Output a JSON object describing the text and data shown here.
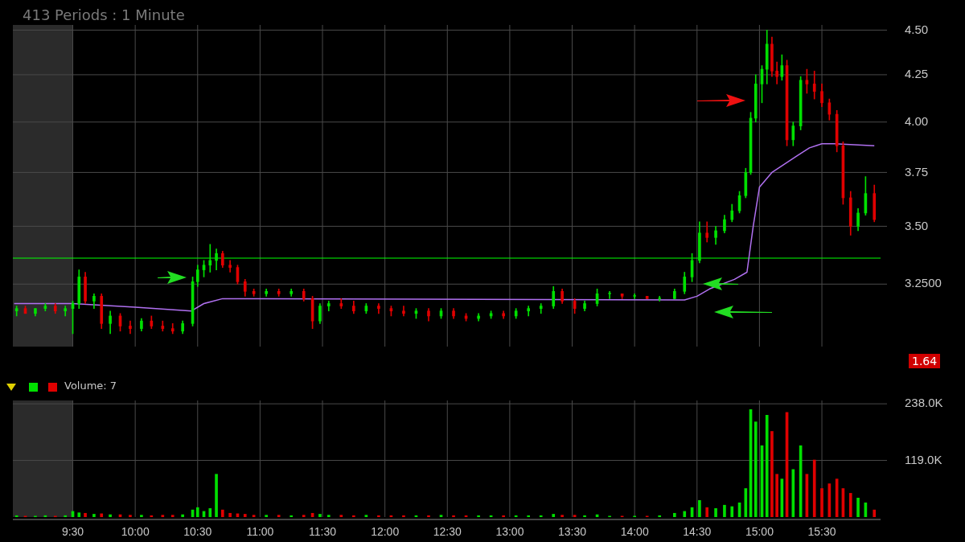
{
  "chart_data": [
    {
      "type": "candlestick",
      "title": "413  Periods : 1 Minute",
      "log": true,
      "grid": true,
      "tick_labels": "y",
      "annotations": [
        "1.64"
      ],
      "xlim": [
        9.02,
        15.97
      ],
      "ylim": [
        3.0,
        4.53
      ],
      "xticks": [
        {
          "value": 9.5,
          "label": null
        },
        {
          "value": 10,
          "label": null
        },
        {
          "value": 10.5,
          "label": null
        },
        {
          "value": 11,
          "label": null
        },
        {
          "value": 11.5,
          "label": null
        },
        {
          "value": 12,
          "label": null
        },
        {
          "value": 12.5,
          "label": null
        },
        {
          "value": 13,
          "label": null
        },
        {
          "value": 13.5,
          "label": null
        },
        {
          "value": 14,
          "label": null
        },
        {
          "value": 14.5,
          "label": null
        },
        {
          "value": 15,
          "label": null
        },
        {
          "value": 15.5,
          "label": null
        }
      ],
      "yticks": [
        {
          "value": 3.25,
          "label": "3.2500"
        },
        {
          "value": 3.5,
          "label": "3.50"
        },
        {
          "value": 3.75,
          "label": "3.75"
        },
        {
          "value": 4,
          "label": "4.00"
        },
        {
          "value": 4.25,
          "label": "4.25"
        },
        {
          "value": 4.5,
          "label": "4.50"
        }
      ],
      "ref_lines": [
        {
          "axis": "y",
          "value": 3.36,
          "color": "#00ff00"
        }
      ],
      "bands": [
        {
          "axis": "x",
          "from": 9.02,
          "to": 9.5,
          "color": "#2b2b2b"
        }
      ],
      "series": [
        {
          "type": "candlestick",
          "x": [
            9.05,
            9.12,
            9.2,
            9.28,
            9.36,
            9.44,
            9.5,
            9.55,
            9.6,
            9.67,
            9.73,
            9.8,
            9.88,
            9.96,
            10.05,
            10.13,
            10.22,
            10.3,
            10.38,
            10.46,
            10.5,
            10.55,
            10.6,
            10.65,
            10.7,
            10.76,
            10.82,
            10.88,
            10.95,
            11.05,
            11.15,
            11.25,
            11.35,
            11.42,
            11.48,
            11.55,
            11.65,
            11.75,
            11.85,
            11.95,
            12.05,
            12.15,
            12.25,
            12.35,
            12.45,
            12.55,
            12.65,
            12.75,
            12.85,
            12.95,
            13.05,
            13.15,
            13.25,
            13.35,
            13.42,
            13.52,
            13.6,
            13.7,
            13.8,
            13.9,
            14.0,
            14.1,
            14.2,
            14.32,
            14.4,
            14.46,
            14.52,
            14.58,
            14.65,
            14.72,
            14.78,
            14.84,
            14.89,
            14.93,
            14.97,
            15.02,
            15.06,
            15.1,
            15.14,
            15.18,
            15.22,
            15.27,
            15.33,
            15.38,
            15.44,
            15.5,
            15.56,
            15.62,
            15.67,
            15.73,
            15.79,
            15.85,
            15.92
          ],
          "ohlc": [
            [
              3.14,
              3.16,
              3.12,
              3.15
            ],
            [
              3.15,
              3.16,
              3.13,
              3.13
            ],
            [
              3.13,
              3.15,
              3.12,
              3.15
            ],
            [
              3.15,
              3.17,
              3.14,
              3.16
            ],
            [
              3.16,
              3.17,
              3.13,
              3.14
            ],
            [
              3.14,
              3.16,
              3.12,
              3.15
            ],
            [
              3.15,
              3.18,
              3.05,
              3.17
            ],
            [
              3.17,
              3.31,
              3.15,
              3.28
            ],
            [
              3.28,
              3.3,
              3.17,
              3.18
            ],
            [
              3.18,
              3.21,
              3.15,
              3.2
            ],
            [
              3.2,
              3.21,
              3.07,
              3.09
            ],
            [
              3.09,
              3.14,
              3.05,
              3.12
            ],
            [
              3.12,
              3.13,
              3.06,
              3.08
            ],
            [
              3.08,
              3.1,
              3.05,
              3.07
            ],
            [
              3.07,
              3.11,
              3.06,
              3.1
            ],
            [
              3.1,
              3.12,
              3.07,
              3.08
            ],
            [
              3.08,
              3.1,
              3.06,
              3.07
            ],
            [
              3.07,
              3.09,
              3.05,
              3.06
            ],
            [
              3.06,
              3.1,
              3.05,
              3.09
            ],
            [
              3.09,
              3.28,
              3.08,
              3.26
            ],
            [
              3.26,
              3.33,
              3.24,
              3.31
            ],
            [
              3.31,
              3.35,
              3.28,
              3.33
            ],
            [
              3.33,
              3.42,
              3.3,
              3.35
            ],
            [
              3.35,
              3.4,
              3.31,
              3.38
            ],
            [
              3.38,
              3.39,
              3.32,
              3.33
            ],
            [
              3.33,
              3.35,
              3.3,
              3.32
            ],
            [
              3.32,
              3.33,
              3.25,
              3.26
            ],
            [
              3.26,
              3.27,
              3.2,
              3.22
            ],
            [
              3.22,
              3.23,
              3.2,
              3.21
            ],
            [
              3.21,
              3.23,
              3.2,
              3.22
            ],
            [
              3.22,
              3.23,
              3.2,
              3.21
            ],
            [
              3.21,
              3.23,
              3.2,
              3.22
            ],
            [
              3.22,
              3.23,
              3.18,
              3.19
            ],
            [
              3.19,
              3.2,
              3.07,
              3.1
            ],
            [
              3.1,
              3.17,
              3.09,
              3.16
            ],
            [
              3.16,
              3.18,
              3.14,
              3.17
            ],
            [
              3.17,
              3.19,
              3.15,
              3.16
            ],
            [
              3.16,
              3.18,
              3.13,
              3.14
            ],
            [
              3.14,
              3.17,
              3.13,
              3.16
            ],
            [
              3.16,
              3.17,
              3.13,
              3.15
            ],
            [
              3.15,
              3.16,
              3.12,
              3.14
            ],
            [
              3.14,
              3.16,
              3.12,
              3.13
            ],
            [
              3.13,
              3.15,
              3.11,
              3.14
            ],
            [
              3.14,
              3.15,
              3.1,
              3.12
            ],
            [
              3.12,
              3.15,
              3.11,
              3.14
            ],
            [
              3.14,
              3.15,
              3.11,
              3.12
            ],
            [
              3.12,
              3.13,
              3.1,
              3.11
            ],
            [
              3.11,
              3.13,
              3.1,
              3.12
            ],
            [
              3.12,
              3.14,
              3.11,
              3.13
            ],
            [
              3.13,
              3.14,
              3.11,
              3.12
            ],
            [
              3.12,
              3.15,
              3.11,
              3.14
            ],
            [
              3.14,
              3.16,
              3.12,
              3.15
            ],
            [
              3.15,
              3.17,
              3.13,
              3.16
            ],
            [
              3.16,
              3.24,
              3.15,
              3.22
            ],
            [
              3.22,
              3.23,
              3.17,
              3.18
            ],
            [
              3.18,
              3.19,
              3.13,
              3.15
            ],
            [
              3.15,
              3.18,
              3.14,
              3.17
            ],
            [
              3.17,
              3.23,
              3.16,
              3.21
            ],
            [
              3.21,
              3.22,
              3.19,
              3.21
            ],
            [
              3.21,
              3.21,
              3.19,
              3.2
            ],
            [
              3.2,
              3.21,
              3.19,
              3.2
            ],
            [
              3.2,
              3.2,
              3.19,
              3.19
            ],
            [
              3.19,
              3.2,
              3.18,
              3.19
            ],
            [
              3.19,
              3.23,
              3.19,
              3.22
            ],
            [
              3.22,
              3.3,
              3.21,
              3.28
            ],
            [
              3.28,
              3.38,
              3.26,
              3.35
            ],
            [
              3.35,
              3.52,
              3.34,
              3.47
            ],
            [
              3.47,
              3.52,
              3.43,
              3.45
            ],
            [
              3.45,
              3.5,
              3.42,
              3.48
            ],
            [
              3.48,
              3.55,
              3.47,
              3.53
            ],
            [
              3.53,
              3.6,
              3.52,
              3.57
            ],
            [
              3.57,
              3.66,
              3.56,
              3.64
            ],
            [
              3.64,
              3.77,
              3.63,
              3.75
            ],
            [
              3.75,
              4.05,
              3.74,
              4.02
            ],
            [
              4.02,
              4.25,
              4.0,
              4.2
            ],
            [
              4.2,
              4.3,
              4.1,
              4.28
            ],
            [
              4.28,
              4.5,
              4.2,
              4.42
            ],
            [
              4.42,
              4.46,
              4.24,
              4.27
            ],
            [
              4.27,
              4.32,
              4.2,
              4.24
            ],
            [
              4.24,
              4.36,
              4.22,
              4.3
            ],
            [
              4.3,
              4.33,
              3.88,
              3.91
            ],
            [
              3.91,
              4.0,
              3.88,
              3.98
            ],
            [
              3.98,
              4.24,
              3.96,
              4.22
            ],
            [
              4.22,
              4.28,
              4.15,
              4.2
            ],
            [
              4.2,
              4.27,
              4.12,
              4.16
            ],
            [
              4.16,
              4.2,
              4.08,
              4.1
            ],
            [
              4.1,
              4.12,
              4.01,
              4.04
            ],
            [
              4.04,
              4.06,
              3.85,
              3.88
            ],
            [
              3.88,
              3.9,
              3.6,
              3.63
            ],
            [
              3.63,
              3.66,
              3.46,
              3.5
            ],
            [
              3.5,
              3.58,
              3.48,
              3.56
            ],
            [
              3.56,
              3.73,
              3.55,
              3.65
            ],
            [
              3.65,
              3.69,
              3.52,
              3.53
            ]
          ],
          "colors": [
            "#00e000",
            "#e00000",
            "#00e000",
            "#00e000",
            "#e00000",
            "#00e000",
            "#00e000",
            "#00e000",
            "#e00000",
            "#00e000",
            "#e00000",
            "#00e000",
            "#e00000",
            "#e00000",
            "#00e000",
            "#e00000",
            "#e00000",
            "#e00000",
            "#00e000",
            "#00e000",
            "#00e000",
            "#00e000",
            "#00e000",
            "#00e000",
            "#e00000",
            "#e00000",
            "#e00000",
            "#e00000",
            "#e00000",
            "#00e000",
            "#e00000",
            "#00e000",
            "#e00000",
            "#e00000",
            "#00e000",
            "#00e000",
            "#e00000",
            "#e00000",
            "#00e000",
            "#e00000",
            "#e00000",
            "#e00000",
            "#00e000",
            "#e00000",
            "#00e000",
            "#e00000",
            "#e00000",
            "#00e000",
            "#00e000",
            "#e00000",
            "#00e000",
            "#00e000",
            "#00e000",
            "#00e000",
            "#e00000",
            "#e00000",
            "#00e000",
            "#00e000",
            "#00e000",
            "#e00000",
            "#00e000",
            "#e00000",
            "#00e000",
            "#00e000",
            "#00e000",
            "#00e000",
            "#00e000",
            "#e00000",
            "#00e000",
            "#00e000",
            "#00e000",
            "#00e000",
            "#00e000",
            "#00e000",
            "#00e000",
            "#00e000",
            "#00e000",
            "#e00000",
            "#e00000",
            "#00e000",
            "#e00000",
            "#00e000",
            "#00e000",
            "#e00000",
            "#e00000",
            "#e00000",
            "#e00000",
            "#e00000",
            "#e00000",
            "#e00000",
            "#00e000",
            "#00e000",
            "#e00000"
          ]
        },
        {
          "type": "line",
          "color": "#b070f0",
          "x": [
            9.03,
            9.5,
            10.0,
            10.45,
            10.55,
            10.7,
            11.0,
            14.4,
            14.5,
            14.6,
            14.8,
            14.9,
            14.95,
            15.0,
            15.1,
            15.2,
            15.3,
            15.4,
            15.5,
            15.6,
            15.92
          ],
          "values": [
            3.17,
            3.17,
            3.155,
            3.14,
            3.17,
            3.19,
            3.19,
            3.185,
            3.2,
            3.23,
            3.27,
            3.3,
            3.5,
            3.68,
            3.75,
            3.79,
            3.83,
            3.87,
            3.89,
            3.89,
            3.88
          ]
        }
      ]
    },
    {
      "type": "bar",
      "title": "Volume: 7",
      "grid": true,
      "xlim": [
        9.02,
        15.97
      ],
      "ylim": [
        0,
        245000
      ],
      "xticks": [
        {
          "value": 9.5,
          "label": "9:30"
        },
        {
          "value": 10,
          "label": "10:00"
        },
        {
          "value": 10.5,
          "label": "10:30"
        },
        {
          "value": 11,
          "label": "11:00"
        },
        {
          "value": 11.5,
          "label": "11:30"
        },
        {
          "value": 12,
          "label": "12:00"
        },
        {
          "value": 12.5,
          "label": "12:30"
        },
        {
          "value": 13,
          "label": "13:00"
        },
        {
          "value": 13.5,
          "label": "13:30"
        },
        {
          "value": 14,
          "label": "14:00"
        },
        {
          "value": 14.5,
          "label": "14:30"
        },
        {
          "value": 15,
          "label": "15:00"
        },
        {
          "value": 15.5,
          "label": "15:30"
        }
      ],
      "yticks": [
        {
          "value": 119000,
          "label": "119.0K"
        },
        {
          "value": 238000,
          "label": "238.0K"
        }
      ],
      "bands": [
        {
          "axis": "x",
          "from": 9.02,
          "to": 9.5,
          "color": "#2b2b2b"
        }
      ],
      "x": [
        9.05,
        9.12,
        9.2,
        9.28,
        9.36,
        9.44,
        9.5,
        9.55,
        9.6,
        9.67,
        9.73,
        9.8,
        9.88,
        9.96,
        10.05,
        10.13,
        10.22,
        10.3,
        10.38,
        10.46,
        10.5,
        10.55,
        10.6,
        10.65,
        10.7,
        10.76,
        10.82,
        10.88,
        10.95,
        11.05,
        11.15,
        11.25,
        11.35,
        11.42,
        11.48,
        11.55,
        11.65,
        11.75,
        11.85,
        11.95,
        12.05,
        12.15,
        12.25,
        12.35,
        12.45,
        12.55,
        12.65,
        12.75,
        12.85,
        12.95,
        13.05,
        13.15,
        13.25,
        13.35,
        13.42,
        13.52,
        13.6,
        13.7,
        13.8,
        13.9,
        14.0,
        14.1,
        14.2,
        14.32,
        14.4,
        14.46,
        14.52,
        14.58,
        14.65,
        14.72,
        14.78,
        14.84,
        14.89,
        14.93,
        14.97,
        15.02,
        15.06,
        15.1,
        15.14,
        15.18,
        15.22,
        15.27,
        15.33,
        15.38,
        15.44,
        15.5,
        15.56,
        15.62,
        15.67,
        15.73,
        15.79,
        15.85,
        15.92
      ],
      "values": [
        3000,
        2000,
        2000,
        3000,
        2000,
        3000,
        12000,
        9000,
        8000,
        6000,
        7000,
        5000,
        5000,
        4000,
        4000,
        3000,
        4000,
        4000,
        5000,
        15000,
        20000,
        12000,
        18000,
        90000,
        15000,
        8000,
        7000,
        6000,
        4000,
        4000,
        4000,
        3000,
        4000,
        8000,
        6000,
        4000,
        4000,
        3000,
        4000,
        3000,
        3000,
        3000,
        3000,
        3000,
        4000,
        3000,
        3000,
        3000,
        3000,
        3000,
        3000,
        3000,
        3000,
        6000,
        4000,
        4000,
        3000,
        5000,
        2000,
        2000,
        2000,
        2000,
        3000,
        8000,
        12000,
        20000,
        35000,
        20000,
        18000,
        25000,
        22000,
        30000,
        60000,
        226000,
        200000,
        150000,
        214000,
        180000,
        90000,
        80000,
        220000,
        100000,
        150000,
        90000,
        120000,
        60000,
        70000,
        80000,
        60000,
        50000,
        40000,
        30000,
        15000
      ],
      "colors": [
        "#00e000",
        "#e00000",
        "#00e000",
        "#00e000",
        "#e00000",
        "#00e000",
        "#00e000",
        "#00e000",
        "#e00000",
        "#00e000",
        "#e00000",
        "#00e000",
        "#e00000",
        "#e00000",
        "#00e000",
        "#e00000",
        "#e00000",
        "#e00000",
        "#00e000",
        "#00e000",
        "#00e000",
        "#00e000",
        "#00e000",
        "#00e000",
        "#e00000",
        "#e00000",
        "#e00000",
        "#e00000",
        "#e00000",
        "#00e000",
        "#e00000",
        "#00e000",
        "#e00000",
        "#e00000",
        "#00e000",
        "#00e000",
        "#e00000",
        "#e00000",
        "#00e000",
        "#e00000",
        "#e00000",
        "#e00000",
        "#00e000",
        "#e00000",
        "#00e000",
        "#e00000",
        "#e00000",
        "#00e000",
        "#00e000",
        "#e00000",
        "#00e000",
        "#00e000",
        "#00e000",
        "#00e000",
        "#e00000",
        "#e00000",
        "#00e000",
        "#00e000",
        "#00e000",
        "#e00000",
        "#00e000",
        "#e00000",
        "#00e000",
        "#00e000",
        "#00e000",
        "#00e000",
        "#00e000",
        "#e00000",
        "#00e000",
        "#00e000",
        "#00e000",
        "#00e000",
        "#00e000",
        "#00e000",
        "#00e000",
        "#00e000",
        "#00e000",
        "#e00000",
        "#e00000",
        "#00e000",
        "#e00000",
        "#00e000",
        "#00e000",
        "#e00000",
        "#e00000",
        "#e00000",
        "#e00000",
        "#e00000",
        "#e00000",
        "#e00000",
        "#00e000",
        "#00e000",
        "#e00000"
      ]
    }
  ]
}
